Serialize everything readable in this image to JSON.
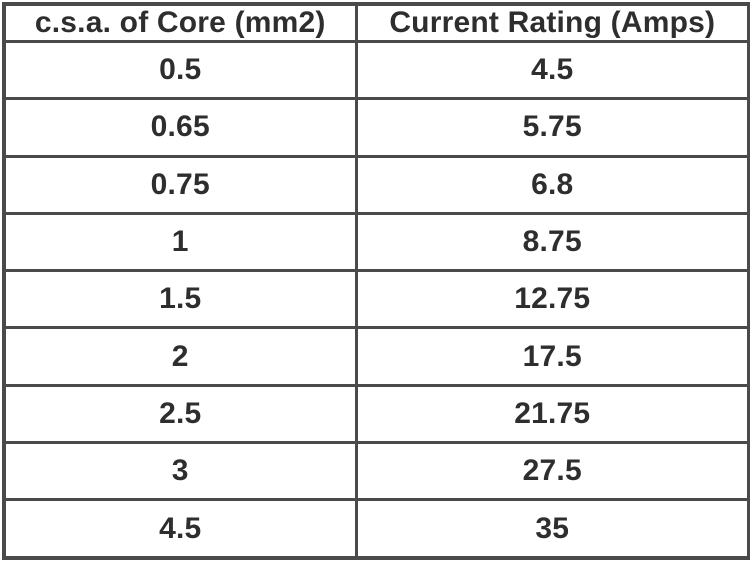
{
  "table": {
    "columns": [
      "c.s.a. of Core (mm2)",
      "Current Rating (Amps)"
    ],
    "rows": [
      [
        "0.5",
        "4.5"
      ],
      [
        "0.65",
        "5.75"
      ],
      [
        "0.75",
        "6.8"
      ],
      [
        "1",
        "8.75"
      ],
      [
        "1.5",
        "12.75"
      ],
      [
        "2",
        "17.5"
      ],
      [
        "2.5",
        "21.75"
      ],
      [
        "3",
        "27.5"
      ],
      [
        "4.5",
        "35"
      ]
    ]
  },
  "chart_data": {
    "type": "table",
    "title": "",
    "columns": [
      "c.s.a. of Core (mm2)",
      "Current Rating (Amps)"
    ],
    "csa_mm2": [
      0.5,
      0.65,
      0.75,
      1,
      1.5,
      2,
      2.5,
      3,
      4.5
    ],
    "current_rating_amps": [
      4.5,
      5.75,
      6.8,
      8.75,
      12.75,
      17.5,
      21.75,
      27.5,
      35
    ]
  },
  "colors": {
    "border": "#4a4a4a",
    "text": "#2e2e2e",
    "background": "#ffffff"
  }
}
